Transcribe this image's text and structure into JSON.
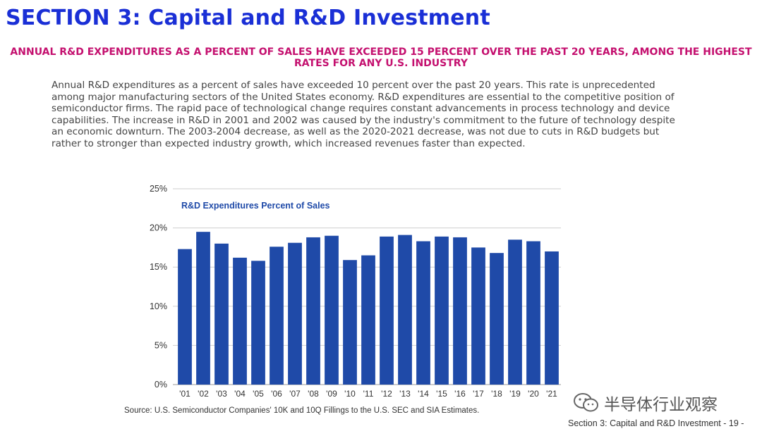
{
  "section_title": "SECTION 3: Capital and R&D Investment",
  "headline": "ANNUAL R&D EXPENDITURES AS A PERCENT OF SALES HAVE EXCEEDED 15 PERCENT OVER THE PAST 20 YEARS, AMONG THE HIGHEST RATES FOR ANY U.S. INDUSTRY",
  "body_text": "Annual R&D expenditures as a percent of sales have exceeded 10 percent over the past 20 years. This rate is unprecedented among major manufacturing sectors of the United States economy. R&D expenditures are essential to the competitive position of semiconductor firms. The rapid pace of technological change requires constant advancements in process technology and device capabilities. The increase in R&D in 2001 and 2002 was caused by the industry's commitment to the future of technology despite an economic downturn. The 2003-2004 decrease, as well as the 2020-2021 decrease, was not due to cuts in R&D budgets but rather to stronger than expected industry growth, which increased revenues faster than expected.",
  "chart_data": {
    "type": "bar",
    "title": "R&D Expenditures Percent of Sales",
    "categories": [
      "'01",
      "'02",
      "'03",
      "'04",
      "'05",
      "'06",
      "'07",
      "'08",
      "'09",
      "'10",
      "'11",
      "'12",
      "'13",
      "'14",
      "'15",
      "'16",
      "'17",
      "'18",
      "'19",
      "'20",
      "'21"
    ],
    "values": [
      17.3,
      19.5,
      18.0,
      16.2,
      15.8,
      17.6,
      18.1,
      18.8,
      19.0,
      15.9,
      16.5,
      18.9,
      19.1,
      18.3,
      18.9,
      18.8,
      17.5,
      16.8,
      18.5,
      18.3,
      17.0
    ],
    "yticks": [
      "25%",
      "20%",
      "15%",
      "10%",
      "5%",
      "0%"
    ],
    "ylim": [
      0,
      25
    ],
    "ylabel": "",
    "xlabel": "",
    "grid": true,
    "bar_color": "#1f4aa8"
  },
  "source": "Source: U.S. Semiconductor Companies' 10K and 10Q Fillings to the U.S. SEC and SIA Estimates.",
  "watermark": {
    "icon": "wechat-icon",
    "label": "半导体行业观察"
  },
  "footer": {
    "text": "Section 3: Capital and R&D Investment",
    "page": "- 19 -"
  }
}
